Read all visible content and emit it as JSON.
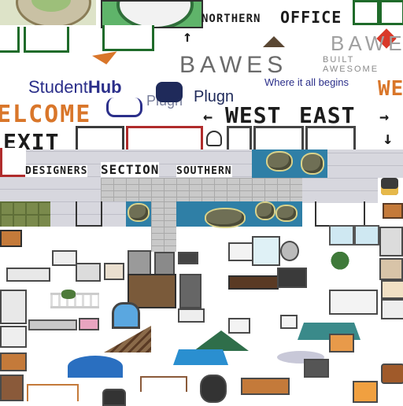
{
  "signs": {
    "northern_office": "NORTHERN",
    "office": "OFFICE",
    "bawes_large": "BAWES",
    "bawes_small": "BAWE",
    "built_awesome": "BUILT AWESOME",
    "studenthub_student": "Student",
    "studenthub_hub": "Hub",
    "plugn": "Plugn",
    "plugn_ghost": "Plugn",
    "where_it_all_begins": "Where it all begins",
    "welcome": "ELCOME",
    "welcome_partial": "WE",
    "west": "WEST",
    "east": "EAST",
    "exit": "EXIT",
    "designers": "DESIGNERS",
    "section": "SECTION",
    "southern": "SOUTHERN"
  },
  "arrows": {
    "up": "↑",
    "left": "←",
    "right": "→",
    "down": "↓"
  },
  "colors": {
    "studenthub_blue": "#2b2f8a",
    "welcome_orange": "#d9762a",
    "bawes_gray": "#6b6b6b",
    "plugn_navy": "#1f2a5a",
    "wall_red": "#b02c2c",
    "grass_green": "#1f6b2a"
  }
}
